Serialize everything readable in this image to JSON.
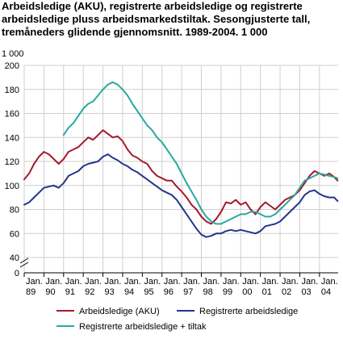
{
  "chart_data": {
    "type": "line",
    "title": "Arbeidsledige (AKU), registrerte arbeidsledige og registrerte arbeidsledige pluss arbeidsmarkedstiltak. Sesongjusterte tall, tremåneders glidende gjennomsnitt. 1989-2004. 1 000",
    "ylabel": "1 000",
    "ylim": [
      40,
      200
    ],
    "yticks": [
      200,
      180,
      160,
      140,
      120,
      100,
      80,
      60,
      40,
      0
    ],
    "axis_break": true,
    "xlim": [
      1989.0,
      2004.95
    ],
    "xtick_years": [
      "89",
      "90",
      "91",
      "92",
      "93",
      "94",
      "95",
      "96",
      "97",
      "98",
      "99",
      "00",
      "01",
      "02",
      "03",
      "04"
    ],
    "xtick_prefix": "Jan.",
    "grid": true,
    "legend_position": "bottom",
    "series": [
      {
        "name": "Arbeidsledige (AKU)",
        "color": "#a6192e",
        "x": [
          1989.0,
          1989.25,
          1989.5,
          1989.75,
          1990.0,
          1990.25,
          1990.5,
          1990.75,
          1991.0,
          1991.25,
          1991.5,
          1991.75,
          1992.0,
          1992.25,
          1992.5,
          1992.75,
          1993.0,
          1993.25,
          1993.5,
          1993.75,
          1994.0,
          1994.25,
          1994.5,
          1994.75,
          1995.0,
          1995.25,
          1995.5,
          1995.75,
          1996.0,
          1996.25,
          1996.5,
          1996.75,
          1997.0,
          1997.25,
          1997.5,
          1997.75,
          1998.0,
          1998.25,
          1998.5,
          1998.75,
          1999.0,
          1999.25,
          1999.5,
          1999.75,
          2000.0,
          2000.25,
          2000.5,
          2000.75,
          2001.0,
          2001.25,
          2001.5,
          2001.75,
          2002.0,
          2002.25,
          2002.5,
          2002.75,
          2003.0,
          2003.25,
          2003.5,
          2003.75,
          2004.0,
          2004.25,
          2004.5,
          2004.75,
          2004.92
        ],
        "y": [
          105,
          110,
          118,
          124,
          128,
          126,
          122,
          118,
          122,
          128,
          130,
          132,
          136,
          140,
          138,
          142,
          146,
          143,
          140,
          141,
          137,
          130,
          125,
          123,
          120,
          118,
          112,
          108,
          106,
          104,
          104,
          99,
          95,
          90,
          84,
          80,
          74,
          70,
          68,
          72,
          78,
          86,
          85,
          88,
          84,
          86,
          80,
          76,
          82,
          86,
          83,
          80,
          84,
          88,
          90,
          92,
          96,
          102,
          108,
          112,
          110,
          108,
          110,
          107,
          104
        ]
      },
      {
        "name": "Registrerte arbeidsledige",
        "color": "#26348b",
        "x": [
          1989.0,
          1989.25,
          1989.5,
          1989.75,
          1990.0,
          1990.25,
          1990.5,
          1990.75,
          1991.0,
          1991.25,
          1991.5,
          1991.75,
          1992.0,
          1992.25,
          1992.5,
          1992.75,
          1993.0,
          1993.25,
          1993.5,
          1993.75,
          1994.0,
          1994.25,
          1994.5,
          1994.75,
          1995.0,
          1995.25,
          1995.5,
          1995.75,
          1996.0,
          1996.25,
          1996.5,
          1996.75,
          1997.0,
          1997.25,
          1997.5,
          1997.75,
          1998.0,
          1998.25,
          1998.5,
          1998.75,
          1999.0,
          1999.25,
          1999.5,
          1999.75,
          2000.0,
          2000.25,
          2000.5,
          2000.75,
          2001.0,
          2001.25,
          2001.5,
          2001.75,
          2002.0,
          2002.25,
          2002.5,
          2002.75,
          2003.0,
          2003.25,
          2003.5,
          2003.75,
          2004.0,
          2004.25,
          2004.5,
          2004.75,
          2004.92
        ],
        "y": [
          84,
          86,
          90,
          94,
          98,
          99,
          100,
          98,
          102,
          108,
          110,
          112,
          116,
          118,
          119,
          120,
          124,
          126,
          123,
          121,
          118,
          116,
          113,
          111,
          108,
          105,
          102,
          99,
          96,
          94,
          92,
          88,
          82,
          76,
          70,
          64,
          59,
          57,
          58,
          60,
          60,
          62,
          63,
          62,
          63,
          62,
          61,
          60,
          62,
          66,
          67,
          68,
          70,
          74,
          78,
          82,
          86,
          92,
          95,
          96,
          93,
          91,
          90,
          90,
          87
        ]
      },
      {
        "name": "Registrerte arbeidsledige + tiltak",
        "color": "#2aa8a0",
        "x": [
          1991.0,
          1991.25,
          1991.5,
          1991.75,
          1992.0,
          1992.25,
          1992.5,
          1992.75,
          1993.0,
          1993.25,
          1993.5,
          1993.75,
          1994.0,
          1994.25,
          1994.5,
          1994.75,
          1995.0,
          1995.25,
          1995.5,
          1995.75,
          1996.0,
          1996.25,
          1996.5,
          1996.75,
          1997.0,
          1997.25,
          1997.5,
          1997.75,
          1998.0,
          1998.25,
          1998.5,
          1998.75,
          1999.0,
          1999.25,
          1999.5,
          1999.75,
          2000.0,
          2000.25,
          2000.5,
          2000.75,
          2001.0,
          2001.25,
          2001.5,
          2001.75,
          2002.0,
          2002.25,
          2002.5,
          2002.75,
          2003.0,
          2003.25,
          2003.5,
          2003.75,
          2004.0,
          2004.25,
          2004.5,
          2004.75,
          2004.92
        ],
        "y": [
          142,
          148,
          152,
          158,
          164,
          168,
          170,
          175,
          180,
          184,
          186,
          184,
          180,
          175,
          168,
          162,
          156,
          150,
          146,
          140,
          136,
          130,
          124,
          118,
          110,
          102,
          95,
          88,
          80,
          74,
          70,
          68,
          68,
          70,
          72,
          74,
          76,
          76,
          78,
          78,
          76,
          74,
          74,
          76,
          80,
          84,
          88,
          92,
          98,
          104,
          106,
          108,
          110,
          109,
          108,
          107,
          106
        ]
      }
    ]
  }
}
